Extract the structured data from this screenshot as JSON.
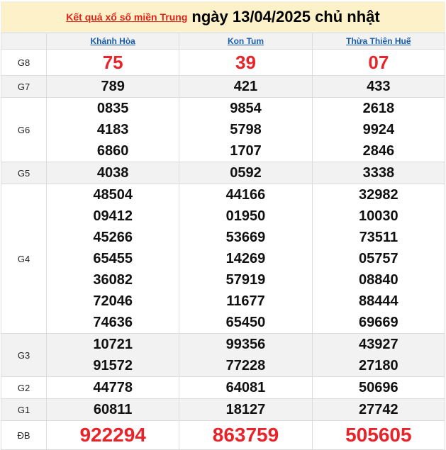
{
  "banner": {
    "link": "Kết quả xổ số miền Trung",
    "date": "ngày 13/04/2025 chủ nhật"
  },
  "provinces": [
    "Khánh Hòa",
    "Kon Tum",
    "Thừa Thiên Huế"
  ],
  "rows": [
    {
      "label": "G8",
      "values": [
        [
          "75"
        ],
        [
          "39"
        ],
        [
          "07"
        ]
      ]
    },
    {
      "label": "G7",
      "values": [
        [
          "789"
        ],
        [
          "421"
        ],
        [
          "433"
        ]
      ]
    },
    {
      "label": "G6",
      "values": [
        [
          "0835",
          "4183",
          "6860"
        ],
        [
          "9854",
          "5798",
          "1707"
        ],
        [
          "2618",
          "9924",
          "2846"
        ]
      ]
    },
    {
      "label": "G5",
      "values": [
        [
          "4038"
        ],
        [
          "0592"
        ],
        [
          "3338"
        ]
      ]
    },
    {
      "label": "G4",
      "values": [
        [
          "48504",
          "09412",
          "45266",
          "65455",
          "36082",
          "72046",
          "74636"
        ],
        [
          "44166",
          "01950",
          "53669",
          "14269",
          "57919",
          "11677",
          "65450"
        ],
        [
          "32982",
          "10030",
          "73511",
          "05757",
          "08840",
          "88444",
          "69669"
        ]
      ]
    },
    {
      "label": "G3",
      "values": [
        [
          "10721",
          "91572"
        ],
        [
          "99356",
          "77228"
        ],
        [
          "43927",
          "27180"
        ]
      ]
    },
    {
      "label": "G2",
      "values": [
        [
          "44778"
        ],
        [
          "64081"
        ],
        [
          "50696"
        ]
      ]
    },
    {
      "label": "G1",
      "values": [
        [
          "60811"
        ],
        [
          "18127"
        ],
        [
          "27742"
        ]
      ]
    },
    {
      "label": "ĐB",
      "values": [
        [
          "922294"
        ],
        [
          "863759"
        ],
        [
          "505605"
        ]
      ]
    }
  ],
  "colors": {
    "accent_red": "#e8242a",
    "link_blue": "#1a5ea8",
    "banner_bg": "#fcf1c8"
  }
}
